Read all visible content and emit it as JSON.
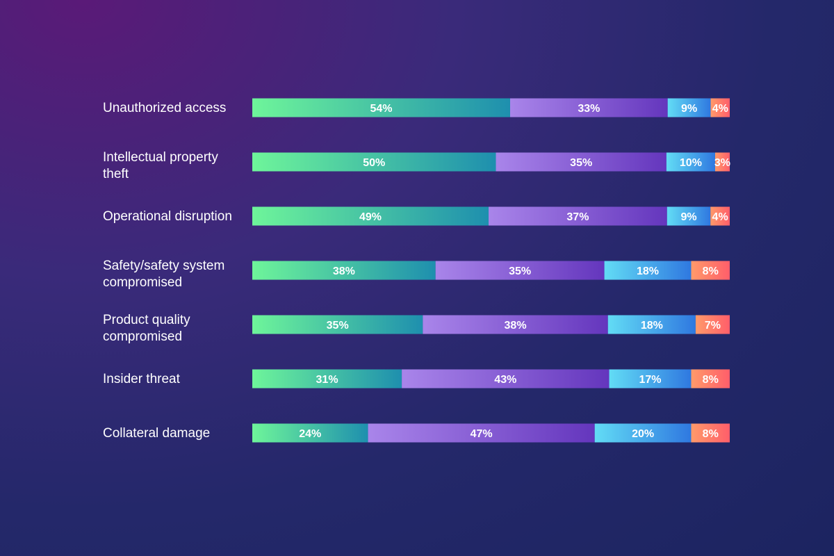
{
  "chart_data": {
    "type": "bar",
    "orientation": "horizontal",
    "stacked": true,
    "categories": [
      "Unauthorized access",
      "Intellectual property theft",
      "Operational disruption",
      "Safety/safety system compromised",
      "Product quality compromised",
      "Insider threat",
      "Collateral damage"
    ],
    "category_lines": [
      [
        "Unauthorized access"
      ],
      [
        "Intellectual property",
        "theft"
      ],
      [
        "Operational disruption"
      ],
      [
        "Safety/safety system",
        "compromised"
      ],
      [
        "Product quality",
        "compromised"
      ],
      [
        "Insider threat"
      ],
      [
        "Collateral damage"
      ]
    ],
    "series": [
      {
        "values": [
          54,
          50,
          49,
          38,
          35,
          31,
          24
        ],
        "labels": [
          "54%",
          "50%",
          "49%",
          "38%",
          "35%",
          "31%",
          "24%"
        ],
        "color_start": "#6ef59a",
        "color_end": "#1e8fae"
      },
      {
        "values": [
          33,
          35,
          37,
          35,
          38,
          43,
          47
        ],
        "labels": [
          "33%",
          "35%",
          "37%",
          "35%",
          "38%",
          "43%",
          "47%"
        ],
        "color_start": "#a985ea",
        "color_end": "#6436bd"
      },
      {
        "values": [
          9,
          10,
          9,
          18,
          18,
          17,
          20
        ],
        "labels": [
          "9%",
          "10%",
          "9%",
          "18%",
          "18%",
          "17%",
          "20%"
        ],
        "color_start": "#62dcf5",
        "color_end": "#2f78e0"
      },
      {
        "values": [
          4,
          3,
          4,
          8,
          7,
          8,
          8
        ],
        "labels": [
          "4%",
          "3%",
          "4%",
          "8%",
          "7%",
          "8%",
          "8%"
        ],
        "color_start": "#ff9a6a",
        "color_end": "#ff5e6a"
      }
    ],
    "xlim": [
      0,
      100
    ],
    "legend": "none",
    "grid": false
  }
}
